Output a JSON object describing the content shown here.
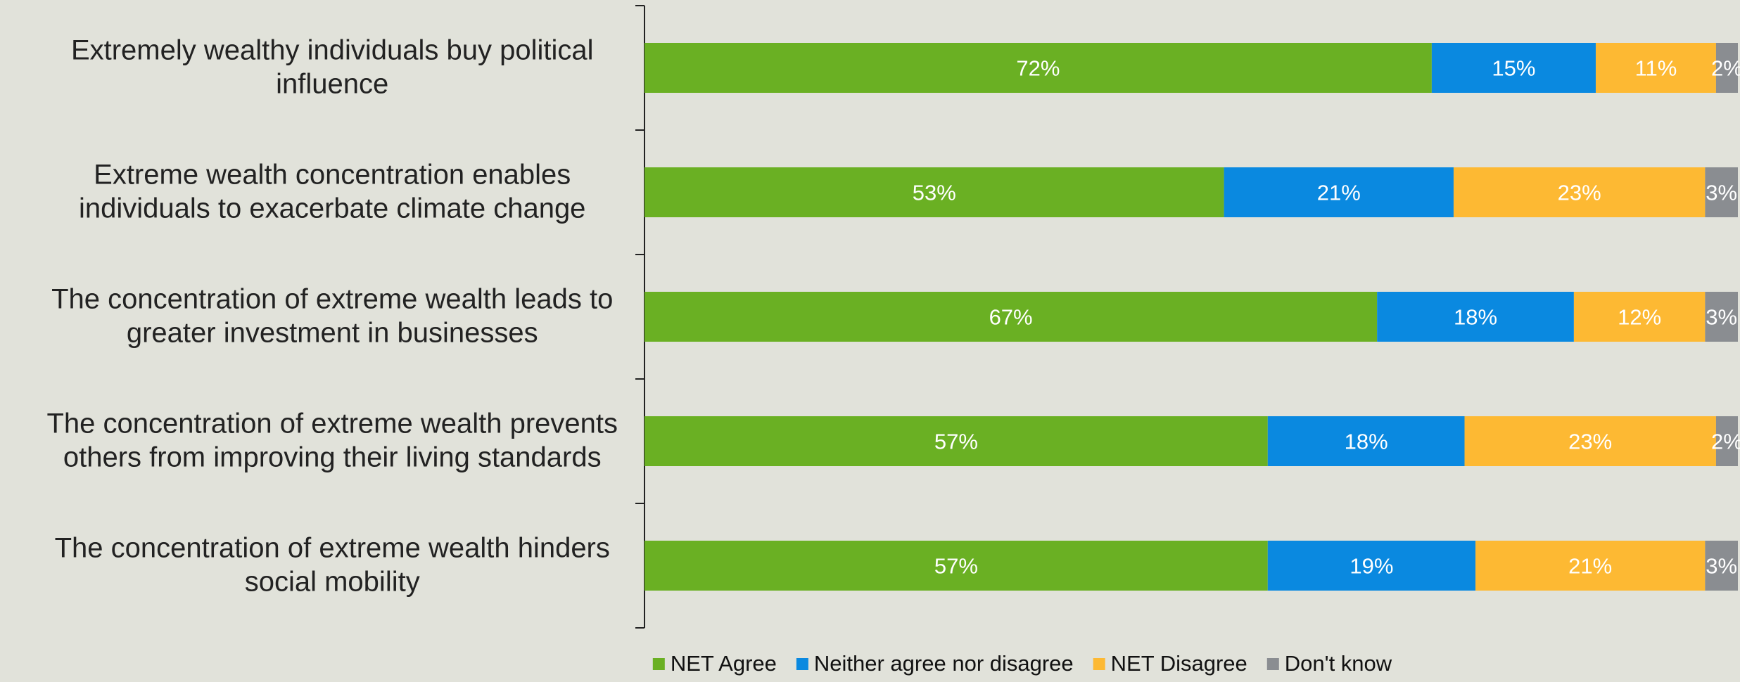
{
  "chart_data": {
    "type": "bar",
    "orientation": "horizontal",
    "stacked": true,
    "categories": [
      [
        "Extremely wealthy individuals buy political",
        "influence"
      ],
      [
        "Extreme wealth concentration enables",
        "individuals to exacerbate climate change"
      ],
      [
        "The concentration of extreme wealth leads to",
        "greater investment in businesses"
      ],
      [
        "The concentration of extreme wealth prevents",
        "others from improving their living standards"
      ],
      [
        "The concentration of extreme wealth hinders",
        "social mobility"
      ]
    ],
    "series": [
      {
        "name": "NET Agree",
        "color": "#6ab023",
        "values": [
          72,
          53,
          67,
          57,
          57
        ]
      },
      {
        "name": "Neither agree nor disagree",
        "color": "#0a89e0",
        "values": [
          15,
          21,
          18,
          18,
          19
        ]
      },
      {
        "name": "NET Disagree",
        "color": "#fdb933",
        "values": [
          11,
          23,
          12,
          23,
          21
        ]
      },
      {
        "name": "Don't know",
        "color": "#8a8d91",
        "values": [
          2,
          3,
          3,
          2,
          3
        ]
      }
    ],
    "value_suffix": "%",
    "xlim": [
      0,
      100
    ],
    "grid": false,
    "legend_position": "bottom"
  },
  "colors": {
    "background": "#e1e2da",
    "axis": "#222222",
    "label_text": "#222222",
    "data_label_text": "#ffffff"
  }
}
